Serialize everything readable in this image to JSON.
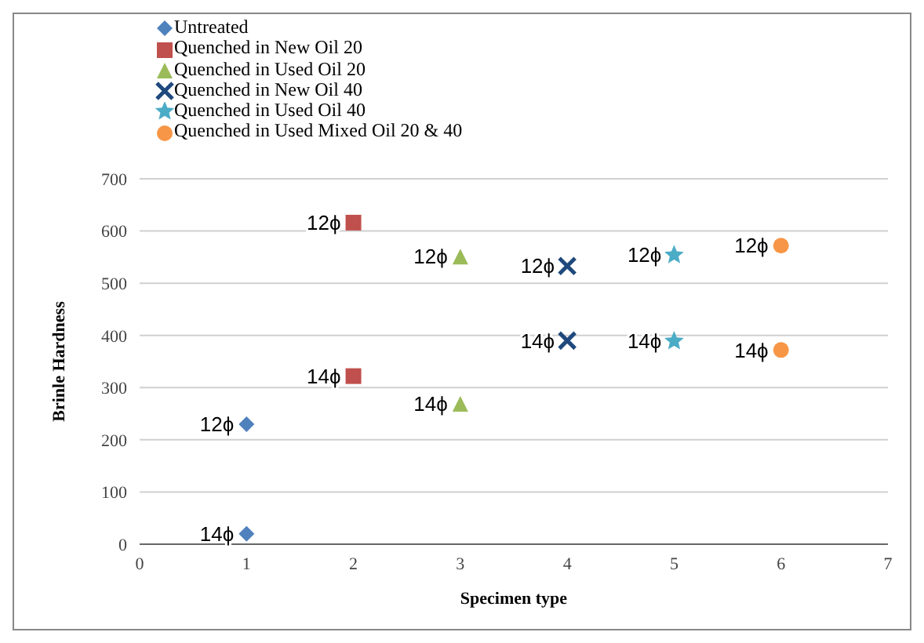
{
  "chart_data": {
    "type": "scatter",
    "xlabel": "Specimen type",
    "ylabel": "Brinle Hardness",
    "xlim": [
      0,
      7
    ],
    "xticks": [
      0,
      1,
      2,
      3,
      4,
      5,
      6,
      7
    ],
    "ylim": [
      0,
      700
    ],
    "yticks": [
      0,
      100,
      200,
      300,
      400,
      500,
      600,
      700
    ],
    "grid": "y",
    "legend": "top left",
    "series": [
      {
        "name": "Untreated",
        "color": "#4f81bd",
        "marker": "diamond",
        "x": [
          1,
          1
        ],
        "values": [
          230,
          20
        ]
      },
      {
        "name": "Quenched in New Oil 20",
        "color": "#c0504d",
        "marker": "square",
        "x": [
          2,
          2
        ],
        "values": [
          616,
          322
        ]
      },
      {
        "name": "Quenched in Used Oil 20",
        "color": "#9bbb59",
        "marker": "triangle",
        "x": [
          3,
          3
        ],
        "values": [
          551,
          269
        ]
      },
      {
        "name": "Quenched in New Oil 40",
        "color": "#1f497d",
        "marker": "cross",
        "x": [
          4,
          4
        ],
        "values": [
          533,
          390
        ]
      },
      {
        "name": "Quenched in Used Oil 40",
        "color": "#4bacc6",
        "marker": "star",
        "x": [
          5,
          5
        ],
        "values": [
          554,
          389
        ]
      },
      {
        "name": "Quenched in Used Mixed Oil 20 & 40",
        "color": "#f79646",
        "marker": "circle",
        "x": [
          6,
          6
        ],
        "values": [
          572,
          372
        ]
      }
    ],
    "annotations": [
      {
        "text": "12ϕ",
        "x": 1,
        "y": 230
      },
      {
        "text": "14ϕ",
        "x": 1,
        "y": 20
      },
      {
        "text": "12ϕ",
        "x": 2,
        "y": 616
      },
      {
        "text": "14ϕ",
        "x": 2,
        "y": 322
      },
      {
        "text": "12ϕ",
        "x": 3,
        "y": 551
      },
      {
        "text": "14ϕ",
        "x": 3,
        "y": 269
      },
      {
        "text": "12ϕ",
        "x": 4,
        "y": 533
      },
      {
        "text": "14ϕ",
        "x": 4,
        "y": 390
      },
      {
        "text": "12ϕ",
        "x": 5,
        "y": 554
      },
      {
        "text": "14ϕ",
        "x": 5,
        "y": 389
      },
      {
        "text": "12ϕ",
        "x": 6,
        "y": 572
      },
      {
        "text": "14ϕ",
        "x": 6,
        "y": 372
      }
    ]
  }
}
